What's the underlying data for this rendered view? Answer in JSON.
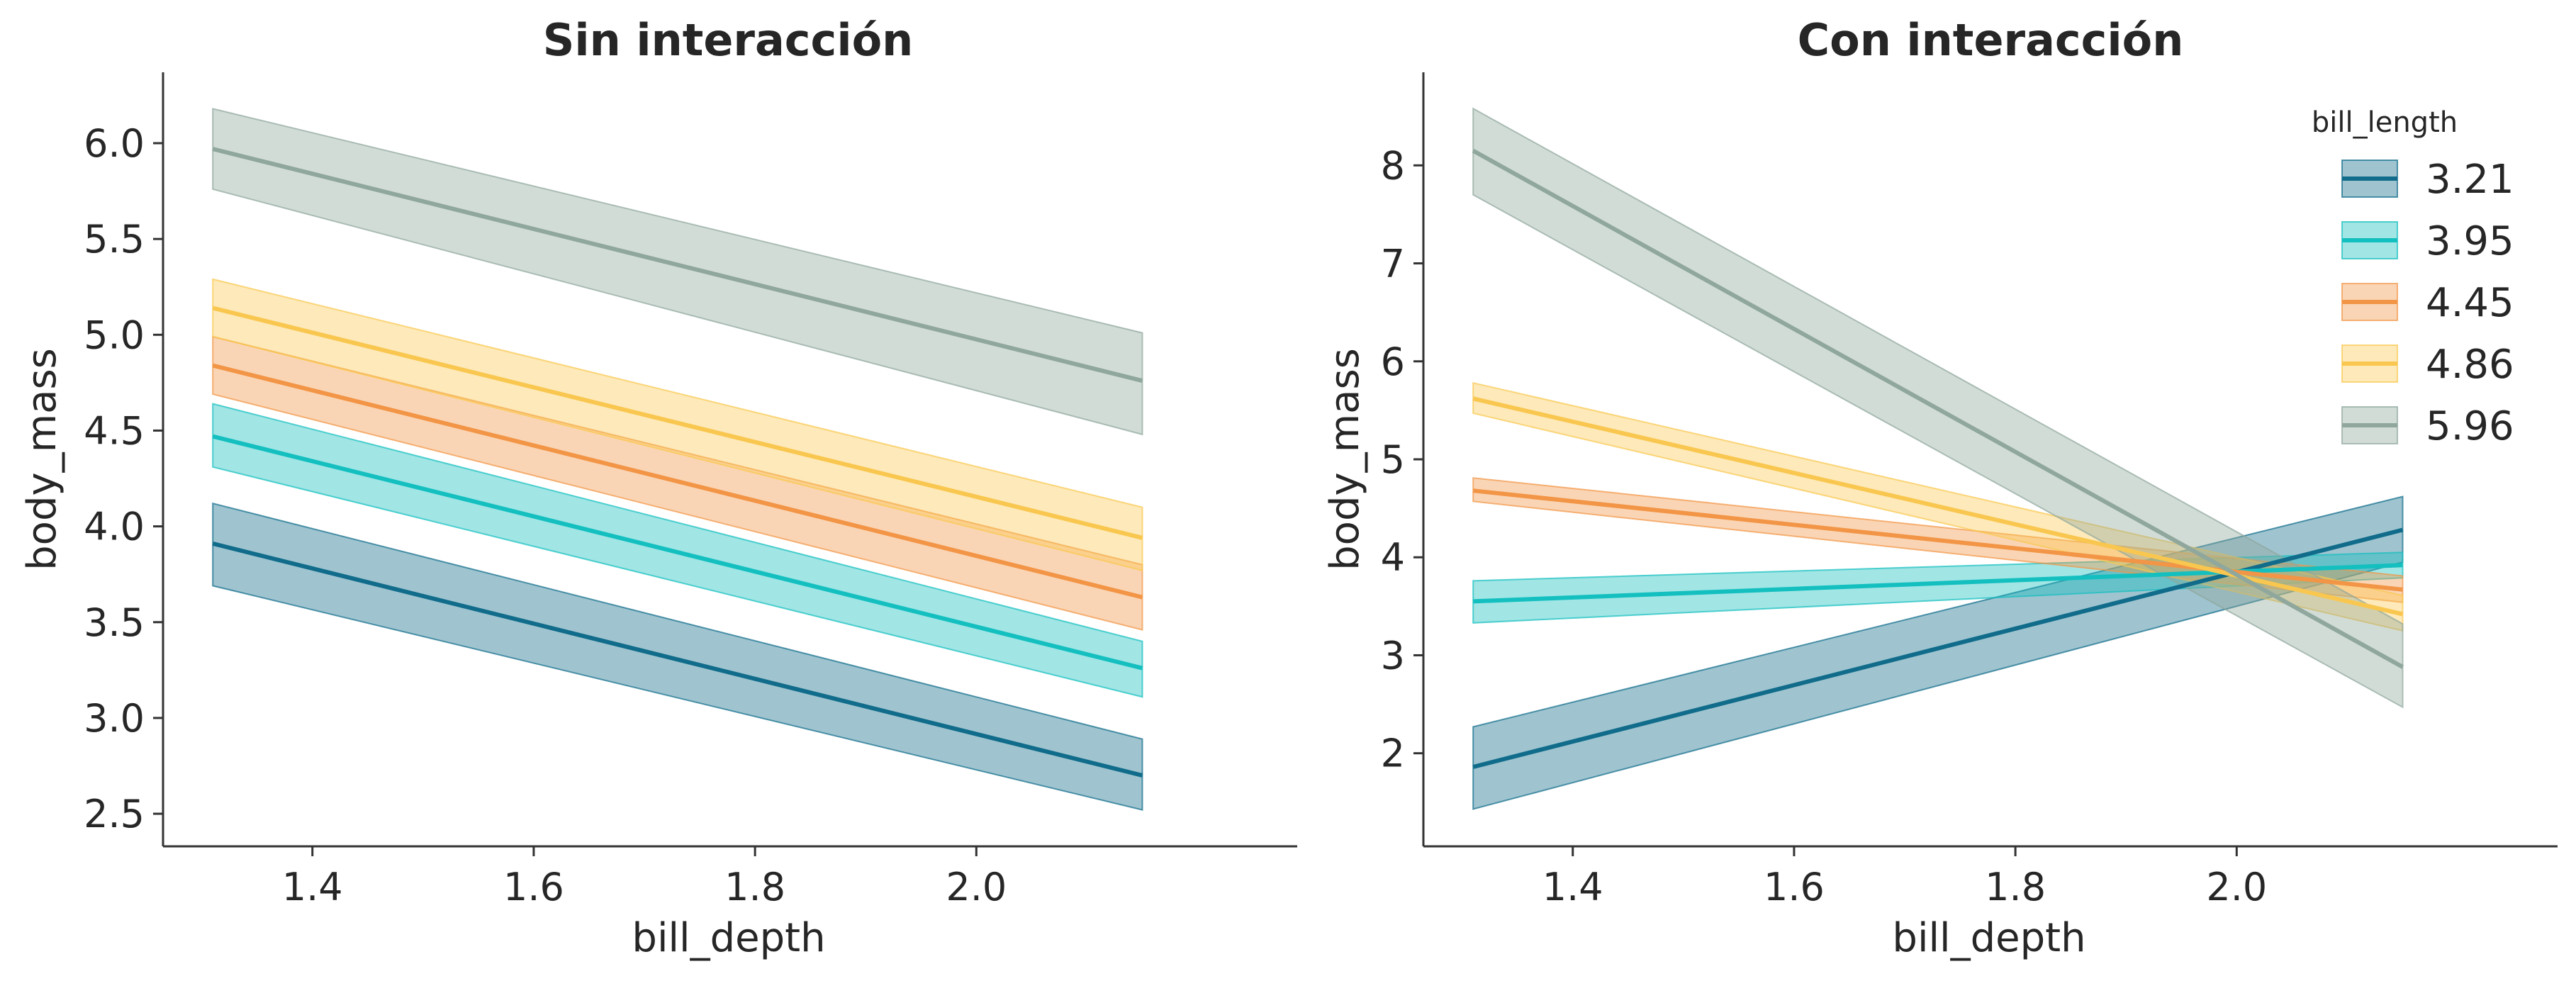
{
  "colors": {
    "3.21": "#106c8a",
    "3.95": "#14bfbf",
    "4.45": "#f29546",
    "4.86": "#f9c74f",
    "5.96": "#8fa79c",
    "axis": "#333333",
    "text": "#262626"
  },
  "chart_data": [
    {
      "type": "line",
      "title": "Sin interacción",
      "xlabel": "bill_depth",
      "ylabel": "body_mass",
      "xlim": [
        1.265,
        2.29
      ],
      "ylim": [
        2.33,
        6.37
      ],
      "xticks": [
        1.4,
        1.6,
        1.8,
        2.0
      ],
      "xtick_labels": [
        "1.4",
        "1.6",
        "1.8",
        "2.0"
      ],
      "yticks": [
        2.5,
        3.0,
        3.5,
        4.0,
        4.5,
        5.0,
        5.5,
        6.0
      ],
      "ytick_labels": [
        "2.5",
        "3.0",
        "3.5",
        "4.0",
        "4.5",
        "5.0",
        "5.5",
        "6.0"
      ],
      "grid": false,
      "legend": false,
      "series": [
        {
          "name": "3.21",
          "x": [
            1.31,
            2.15
          ],
          "y": [
            3.91,
            2.7
          ],
          "lower": [
            3.69,
            2.52
          ],
          "upper": [
            4.12,
            2.89
          ]
        },
        {
          "name": "3.95",
          "x": [
            1.31,
            2.15
          ],
          "y": [
            4.47,
            3.26
          ],
          "lower": [
            4.31,
            3.11
          ],
          "upper": [
            4.64,
            3.4
          ]
        },
        {
          "name": "4.45",
          "x": [
            1.31,
            2.15
          ],
          "y": [
            4.84,
            3.63
          ],
          "lower": [
            4.69,
            3.46
          ],
          "upper": [
            4.99,
            3.8
          ]
        },
        {
          "name": "4.86",
          "x": [
            1.31,
            2.15
          ],
          "y": [
            5.14,
            3.94
          ],
          "lower": [
            4.99,
            3.77
          ],
          "upper": [
            5.29,
            4.1
          ]
        },
        {
          "name": "5.96",
          "x": [
            1.31,
            2.15
          ],
          "y": [
            5.97,
            4.76
          ],
          "lower": [
            5.76,
            4.48
          ],
          "upper": [
            6.18,
            5.01
          ]
        }
      ]
    },
    {
      "type": "line",
      "title": "Con interacción",
      "xlabel": "bill_depth",
      "ylabel": "body_mass",
      "xlim": [
        1.265,
        2.29
      ],
      "ylim": [
        1.05,
        8.95
      ],
      "xticks": [
        1.4,
        1.6,
        1.8,
        2.0
      ],
      "xtick_labels": [
        "1.4",
        "1.6",
        "1.8",
        "2.0"
      ],
      "yticks": [
        2,
        3,
        4,
        5,
        6,
        7,
        8
      ],
      "ytick_labels": [
        "2",
        "3",
        "4",
        "5",
        "6",
        "7",
        "8"
      ],
      "grid": false,
      "legend": "top-right",
      "legend_title": "bill_length",
      "series": [
        {
          "name": "3.21",
          "x": [
            1.31,
            2.15
          ],
          "y": [
            1.86,
            4.28
          ],
          "lower": [
            1.43,
            3.95
          ],
          "upper": [
            2.27,
            4.62
          ]
        },
        {
          "name": "3.95",
          "x": [
            1.31,
            2.15
          ],
          "y": [
            3.55,
            3.92
          ],
          "lower": [
            3.33,
            3.79
          ],
          "upper": [
            3.76,
            4.05
          ]
        },
        {
          "name": "4.45",
          "x": [
            1.31,
            2.15
          ],
          "y": [
            4.68,
            3.67
          ],
          "lower": [
            4.57,
            3.54
          ],
          "upper": [
            4.81,
            3.81
          ]
        },
        {
          "name": "4.86",
          "x": [
            1.31,
            2.15
          ],
          "y": [
            5.62,
            3.42
          ],
          "lower": [
            5.47,
            3.25
          ],
          "upper": [
            5.78,
            3.61
          ]
        },
        {
          "name": "5.96",
          "x": [
            1.31,
            2.15
          ],
          "y": [
            8.15,
            2.88
          ],
          "lower": [
            7.7,
            2.47
          ],
          "upper": [
            8.58,
            3.32
          ]
        }
      ]
    }
  ]
}
